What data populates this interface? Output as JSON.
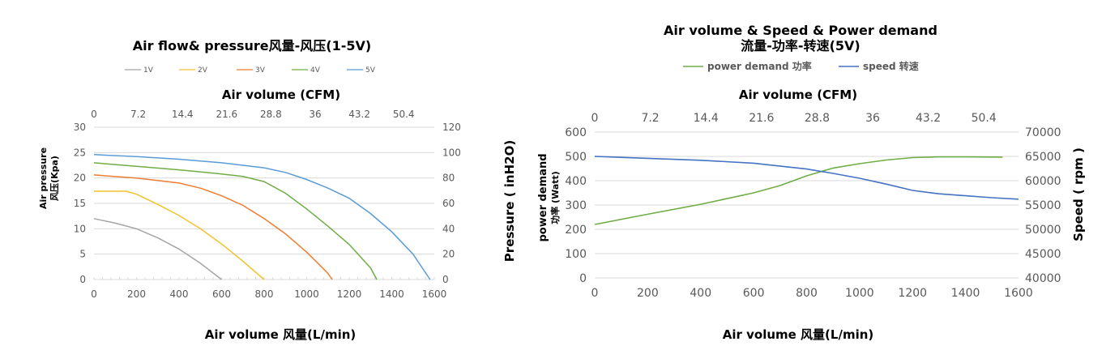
{
  "chart_data": [
    {
      "type": "line",
      "title": "Air flow& pressure风量-风压(1-5V)",
      "xlabel": "Air volume 风量(L/min)",
      "x2label": "Air volume (CFM)",
      "ylabel_line1": "Air pressure",
      "ylabel_line2": "风压(Kpa)",
      "xlim": [
        0,
        1600
      ],
      "xticks": [
        "0",
        "200",
        "400",
        "600",
        "800",
        "1000",
        "1200",
        "1400",
        "1600"
      ],
      "x2ticks": [
        "0",
        "7.2",
        "14.4",
        "21.6",
        "28.8",
        "36",
        "43.2",
        "50.4"
      ],
      "ylim": [
        0,
        30
      ],
      "yticks": [
        "0",
        "5",
        "10",
        "15",
        "20",
        "25",
        "30"
      ],
      "y2lim": [
        0,
        120
      ],
      "y2ticks": [
        "0",
        "20",
        "40",
        "60",
        "80",
        "100",
        "120"
      ],
      "legend_position": "top",
      "series": [
        {
          "name": "1V",
          "color": "#a5a5a5",
          "x": [
            0,
            100,
            200,
            300,
            400,
            500,
            600
          ],
          "y": [
            12,
            11.1,
            10,
            8.2,
            6,
            3.2,
            0
          ]
        },
        {
          "name": "2V",
          "color": "#f2c12e",
          "x": [
            0,
            100,
            150,
            200,
            300,
            400,
            500,
            600,
            700,
            800
          ],
          "y": [
            17.4,
            17.4,
            17.4,
            16.8,
            14.8,
            12.6,
            10,
            7,
            3.6,
            0
          ]
        },
        {
          "name": "3V",
          "color": "#ed7d31",
          "x": [
            0,
            200,
            400,
            500,
            600,
            700,
            800,
            900,
            1000,
            1100,
            1120
          ],
          "y": [
            20.6,
            20,
            19,
            18,
            16.5,
            14.6,
            12,
            9,
            5.4,
            1.2,
            0
          ]
        },
        {
          "name": "4V",
          "color": "#70ad47",
          "x": [
            0,
            200,
            400,
            600,
            700,
            800,
            900,
            1000,
            1100,
            1200,
            1300,
            1330
          ],
          "y": [
            23,
            22.3,
            21.6,
            20.8,
            20.3,
            19.3,
            17,
            13.9,
            10.5,
            6.9,
            2.3,
            0
          ]
        },
        {
          "name": "5V",
          "color": "#5b9bd5",
          "x": [
            0,
            200,
            400,
            600,
            800,
            900,
            1000,
            1100,
            1200,
            1300,
            1400,
            1500,
            1580
          ],
          "y": [
            24.6,
            24.2,
            23.7,
            23,
            22,
            21.1,
            19.7,
            18,
            16,
            13,
            9.4,
            5,
            0
          ]
        }
      ]
    },
    {
      "type": "line",
      "title_line1": "Air volume  &  Speed  &  Power demand",
      "title_line2": "流量-功率-转速(5V)",
      "xlabel": "Air volume 风量(L/min)",
      "x2label": "Air volume (CFM)",
      "ylabel_outer": "Pressure ( inH2O)",
      "ylabel_inner_line1": "power demand",
      "ylabel_inner_line2": "功率 (Watt)",
      "y2label": "Speed ( rpm )",
      "xlim": [
        0,
        1600
      ],
      "xticks": [
        "0",
        "200",
        "400",
        "600",
        "800",
        "1000",
        "1200",
        "1400",
        "1600"
      ],
      "x2ticks": [
        "0",
        "7.2",
        "14.4",
        "21.6",
        "28.8",
        "36",
        "43.2",
        "50.4"
      ],
      "ylim": [
        0,
        600
      ],
      "yticks": [
        "0",
        "100",
        "200",
        "300",
        "400",
        "500",
        "600"
      ],
      "y2lim": [
        40000,
        70000
      ],
      "y2ticks": [
        "40000",
        "45000",
        "50000",
        "55000",
        "60000",
        "65000",
        "70000"
      ],
      "legend_position": "top",
      "series": [
        {
          "name": "power demand 功率",
          "axis": "left",
          "color": "#70ad47",
          "x": [
            0,
            200,
            400,
            600,
            700,
            800,
            900,
            1000,
            1100,
            1200,
            1300,
            1400,
            1540
          ],
          "y": [
            220,
            262,
            303,
            350,
            380,
            420,
            452,
            470,
            485,
            495,
            498,
            498,
            497
          ]
        },
        {
          "name": "speed 转速",
          "axis": "right",
          "color": "#4472c4",
          "x": [
            0,
            200,
            400,
            600,
            800,
            900,
            1000,
            1100,
            1200,
            1300,
            1400,
            1500,
            1600
          ],
          "y": [
            65000,
            64600,
            64200,
            63600,
            62400,
            61500,
            60500,
            59300,
            58000,
            57300,
            56900,
            56500,
            56200
          ]
        }
      ]
    }
  ]
}
